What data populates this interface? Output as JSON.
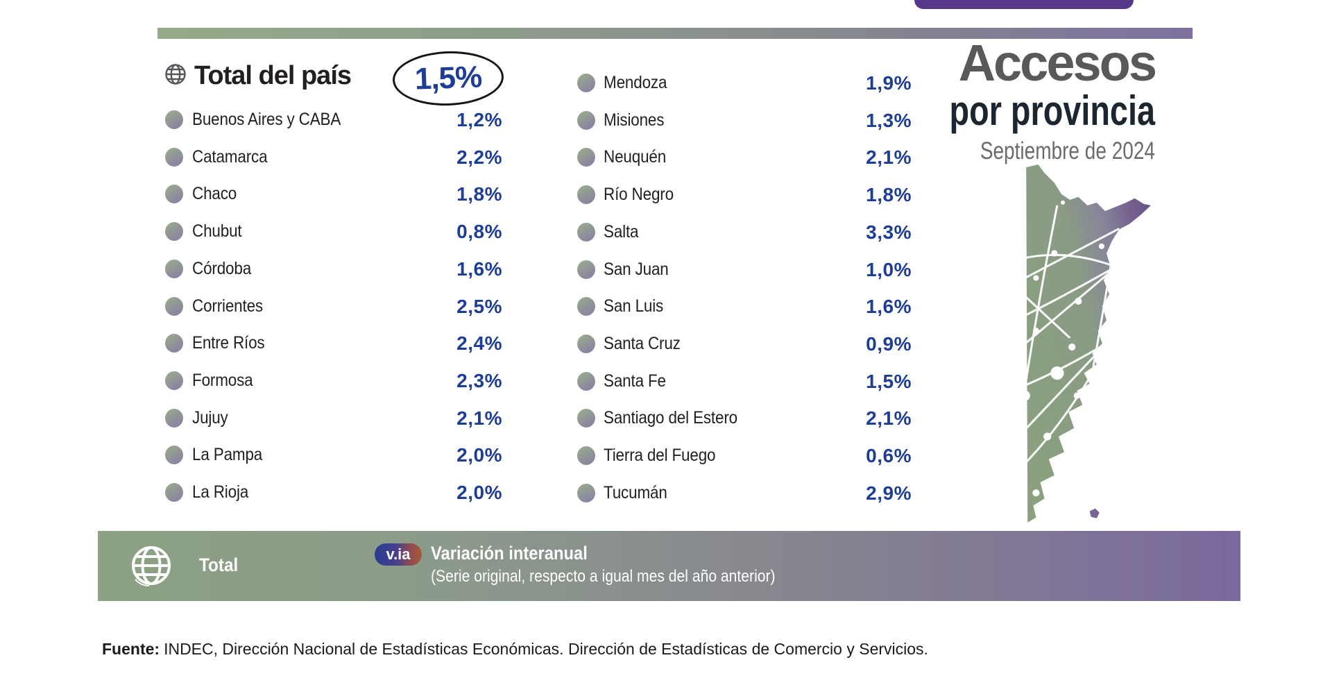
{
  "page": {
    "title_line1": "Accesos",
    "title_line2": "por provincia",
    "subtitle": "Septiembre de 2024"
  },
  "total_row": {
    "icon": "globe-icon",
    "label": "Total del país",
    "value": "1,5%"
  },
  "columns": {
    "left": [
      {
        "label": "Buenos Aires y CABA",
        "value": "1,2%"
      },
      {
        "label": "Catamarca",
        "value": "2,2%"
      },
      {
        "label": "Chaco",
        "value": "1,8%"
      },
      {
        "label": "Chubut",
        "value": "0,8%"
      },
      {
        "label": "Córdoba",
        "value": "1,6%"
      },
      {
        "label": "Corrientes",
        "value": "2,5%"
      },
      {
        "label": "Entre Ríos",
        "value": "2,4%"
      },
      {
        "label": "Formosa",
        "value": "2,3%"
      },
      {
        "label": "Jujuy",
        "value": "2,1%"
      },
      {
        "label": "La Pampa",
        "value": "2,0%"
      },
      {
        "label": "La Rioja",
        "value": "2,0%"
      }
    ],
    "right": [
      {
        "label": "Mendoza",
        "value": "1,9%"
      },
      {
        "label": "Misiones",
        "value": "1,3%"
      },
      {
        "label": "Neuquén",
        "value": "2,1%"
      },
      {
        "label": "Río Negro",
        "value": "1,8%"
      },
      {
        "label": "Salta",
        "value": "3,3%"
      },
      {
        "label": "San Juan",
        "value": "1,0%"
      },
      {
        "label": "San Luis",
        "value": "1,6%"
      },
      {
        "label": "Santa Cruz",
        "value": "0,9%"
      },
      {
        "label": "Santa Fe",
        "value": "1,5%"
      },
      {
        "label": "Santiago del Estero",
        "value": "2,1%"
      },
      {
        "label": "Tierra del Fuego",
        "value": "0,6%"
      },
      {
        "label": "Tucumán",
        "value": "2,9%"
      }
    ]
  },
  "legend": {
    "total_label": "Total",
    "badge_label": "v.ia",
    "title": "Variación interanual",
    "subtitle": "(Serie original, respecto a igual mes del año anterior)"
  },
  "footer": {
    "label": "Fuente:",
    "text": "INDEC, Dirección Nacional de Estadísticas Económicas. Dirección de Estadísticas de Comercio y Servicios."
  },
  "colors": {
    "value_blue": "#1e3d94",
    "bar_green": "#8ca283",
    "bar_purple": "#7a699d",
    "tab_purple": "#56378a",
    "title_gray": "#58595b",
    "map_green": "#8aa07e",
    "map_purple": "#6b5487"
  },
  "chart_data": {
    "type": "table",
    "title": "Accesos por provincia",
    "subtitle": "Septiembre de 2024",
    "unit": "% variación interanual (v.ia)",
    "note": "v.ia = Variación interanual (Serie original, respecto a igual mes del año anterior)",
    "highlight": {
      "label": "Total del país",
      "value": 1.5
    },
    "categories": [
      "Total del país",
      "Buenos Aires y CABA",
      "Catamarca",
      "Chaco",
      "Chubut",
      "Córdoba",
      "Corrientes",
      "Entre Ríos",
      "Formosa",
      "Jujuy",
      "La Pampa",
      "La Rioja",
      "Mendoza",
      "Misiones",
      "Neuquén",
      "Río Negro",
      "Salta",
      "San Juan",
      "San Luis",
      "Santa Cruz",
      "Santa Fe",
      "Santiago del Estero",
      "Tierra del Fuego",
      "Tucumán"
    ],
    "values": [
      1.5,
      1.2,
      2.2,
      1.8,
      0.8,
      1.6,
      2.5,
      2.4,
      2.3,
      2.1,
      2.0,
      2.0,
      1.9,
      1.3,
      2.1,
      1.8,
      3.3,
      1.0,
      1.6,
      0.9,
      1.5,
      2.1,
      0.6,
      2.9
    ],
    "source": "INDEC, Dirección Nacional de Estadísticas Económicas. Dirección de Estadísticas de Comercio y Servicios."
  }
}
